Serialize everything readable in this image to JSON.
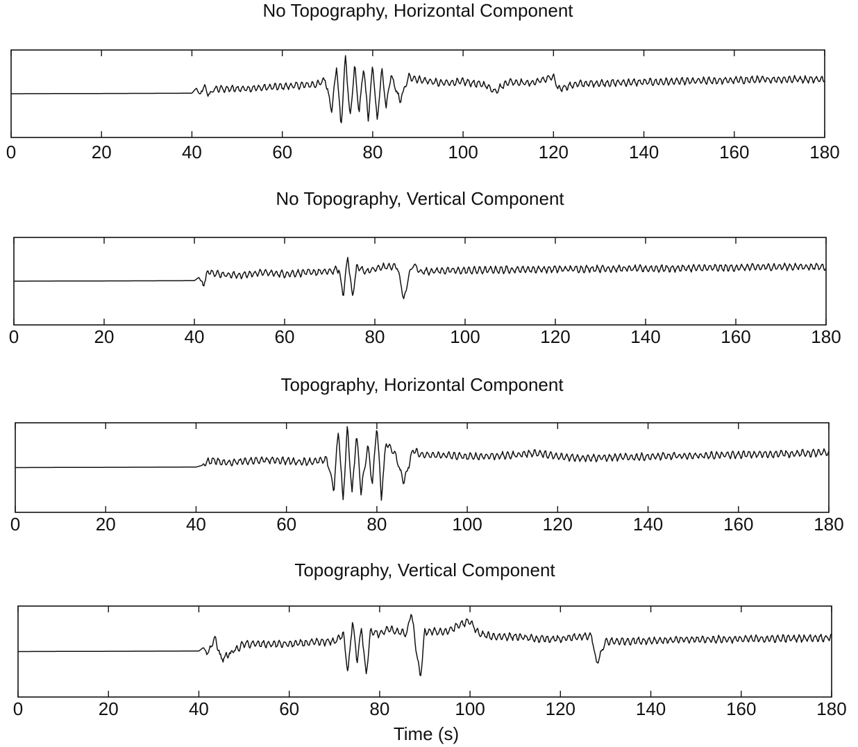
{
  "figure": {
    "xlabel": "Time (s)"
  },
  "chart_data": [
    {
      "type": "line",
      "title": "No Topography, Horizontal Component",
      "xlabel": "",
      "ylabel": "",
      "xlim": [
        0,
        180
      ],
      "xticks": [
        "0",
        "20",
        "40",
        "60",
        "80",
        "100",
        "120",
        "140",
        "160",
        "180"
      ],
      "grid": false,
      "series": [
        {
          "x": [
            0,
            40,
            41,
            41.8,
            42.6,
            43.5,
            45,
            50,
            55,
            60,
            65,
            68,
            69.5,
            71,
            72,
            73,
            74,
            75,
            76,
            77,
            78,
            79,
            80,
            81,
            82,
            83,
            84,
            86,
            88,
            90,
            95,
            100,
            105,
            107,
            110,
            115,
            120,
            121,
            125,
            130,
            140,
            150,
            160,
            170,
            180
          ],
          "y": [
            0,
            0.01,
            0.12,
            -0.06,
            0.18,
            -0.03,
            0.1,
            0.1,
            0.12,
            0.15,
            0.18,
            0.2,
            0.3,
            -0.35,
            0.6,
            -0.7,
            0.8,
            -0.55,
            0.6,
            -0.4,
            0.6,
            -0.55,
            0.62,
            -0.58,
            0.5,
            -0.3,
            0.4,
            -0.15,
            0.35,
            0.3,
            0.22,
            0.25,
            0.18,
            0.05,
            0.25,
            0.22,
            0.35,
            0.1,
            0.2,
            0.22,
            0.24,
            0.26,
            0.28,
            0.3,
            0.3
          ]
        }
      ]
    },
    {
      "type": "line",
      "title": "No Topography, Vertical Component",
      "xlabel": "",
      "ylabel": "",
      "xlim": [
        0,
        180
      ],
      "xticks": [
        "0",
        "20",
        "40",
        "60",
        "80",
        "100",
        "120",
        "140",
        "160",
        "180"
      ],
      "grid": false,
      "series": [
        {
          "x": [
            0,
            40,
            41,
            42,
            43,
            45,
            50,
            55,
            60,
            65,
            70,
            72,
            73,
            74,
            75,
            76,
            78,
            80,
            82,
            85,
            86.5,
            87.5,
            88.5,
            90,
            95,
            100,
            110,
            120,
            130,
            140,
            150,
            160,
            170,
            180
          ],
          "y": [
            0,
            0.01,
            0.08,
            -0.1,
            0.22,
            0.15,
            0.12,
            0.18,
            0.15,
            0.18,
            0.2,
            0.25,
            -0.3,
            0.55,
            -0.35,
            0.3,
            0.2,
            0.25,
            0.3,
            0.3,
            -0.4,
            0.1,
            0.35,
            0.2,
            0.22,
            0.22,
            0.24,
            0.25,
            0.26,
            0.26,
            0.27,
            0.28,
            0.3,
            0.3
          ]
        }
      ]
    },
    {
      "type": "line",
      "title": "Topography, Horizontal Component",
      "xlabel": "",
      "ylabel": "",
      "xlim": [
        0,
        180
      ],
      "xticks": [
        "0",
        "20",
        "40",
        "60",
        "80",
        "100",
        "120",
        "140",
        "160",
        "180"
      ],
      "grid": false,
      "series": [
        {
          "x": [
            0,
            40,
            41.5,
            42.5,
            44,
            46,
            50,
            55,
            58,
            62,
            65,
            69,
            70.5,
            71.5,
            72.5,
            73.5,
            74.5,
            75.5,
            76.5,
            78,
            79,
            80,
            81,
            82,
            84,
            86,
            88,
            90,
            95,
            100,
            110,
            115,
            120,
            125,
            130,
            140,
            150,
            160,
            170,
            180
          ],
          "y": [
            0,
            0.01,
            0.05,
            0.12,
            0.15,
            0.1,
            0.12,
            0.15,
            0.15,
            0.12,
            0.12,
            0.15,
            -0.45,
            0.8,
            -0.7,
            0.85,
            -0.55,
            0.7,
            -0.5,
            0.45,
            -0.35,
            0.9,
            -0.6,
            0.5,
            0.3,
            -0.3,
            0.35,
            0.25,
            0.25,
            0.22,
            0.25,
            0.3,
            0.22,
            0.2,
            0.2,
            0.22,
            0.24,
            0.26,
            0.28,
            0.3
          ]
        }
      ]
    },
    {
      "type": "line",
      "title": "Topography, Vertical Component",
      "xlabel": "Time (s)",
      "ylabel": "",
      "xlim": [
        0,
        180
      ],
      "xticks": [
        "0",
        "20",
        "40",
        "60",
        "80",
        "100",
        "120",
        "140",
        "160",
        "180"
      ],
      "grid": false,
      "series": [
        {
          "x": [
            0,
            40,
            41,
            42,
            43.5,
            45,
            50,
            55,
            60,
            65,
            70,
            72,
            73,
            74,
            75,
            76,
            77,
            78,
            80,
            82,
            84,
            86,
            87,
            88,
            89,
            90,
            95,
            98,
            100,
            102,
            105,
            110,
            115,
            120,
            125,
            127,
            128,
            130,
            140,
            150,
            160,
            170,
            180
          ],
          "y": [
            0,
            0.01,
            0.08,
            -0.05,
            0.28,
            -0.15,
            0.15,
            0.15,
            0.15,
            0.18,
            0.2,
            0.35,
            -0.45,
            0.65,
            -0.2,
            0.5,
            -0.5,
            0.4,
            0.35,
            0.45,
            0.4,
            0.35,
            0.8,
            0.1,
            -0.55,
            0.4,
            0.4,
            0.55,
            0.6,
            0.35,
            0.3,
            0.3,
            0.25,
            0.25,
            0.3,
            0.3,
            -0.25,
            0.2,
            0.22,
            0.24,
            0.25,
            0.26,
            0.28
          ]
        }
      ]
    }
  ]
}
